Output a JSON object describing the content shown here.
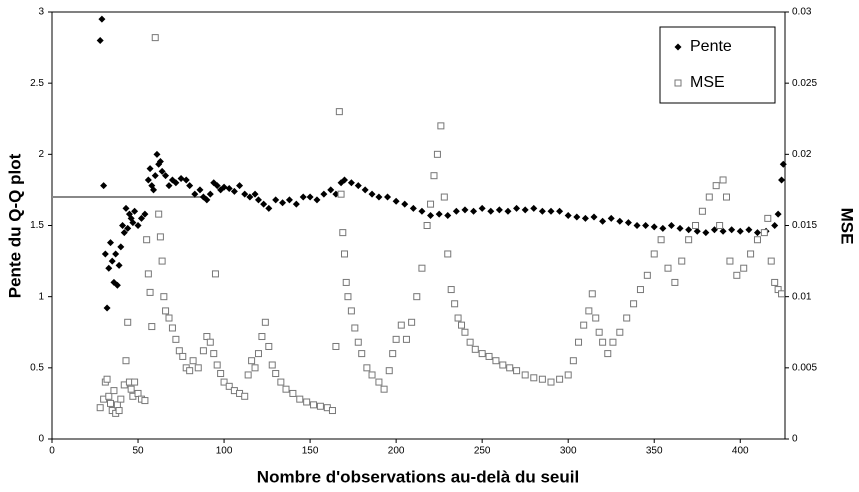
{
  "chart_data": {
    "type": "scatter",
    "xlabel": "Nombre d'observations au-delà du seuil",
    "ylabel": "Pente du Q-Q plot",
    "y2label": "MSE",
    "xlim": [
      0,
      426
    ],
    "xticks": [
      0,
      50,
      100,
      150,
      200,
      250,
      300,
      350,
      400
    ],
    "ylim": [
      0,
      3
    ],
    "yticks": [
      0,
      0.5,
      1,
      1.5,
      2,
      2.5,
      3
    ],
    "y2lim": [
      0,
      0.03
    ],
    "y2ticks": [
      0,
      0.005,
      0.01,
      0.015,
      0.02,
      0.025,
      0.03
    ],
    "legend": "upper right",
    "reference_line": {
      "y": 1.7,
      "x": [
        0,
        90
      ],
      "color": "#888888"
    },
    "series": [
      {
        "name": "Pente",
        "color": "#000000",
        "marker": "diamond",
        "x": [
          28,
          29,
          30,
          31,
          32,
          33,
          34,
          35,
          36,
          37,
          38,
          39,
          40,
          41,
          42,
          43,
          44,
          45,
          46,
          47,
          48,
          50,
          52,
          54,
          56,
          57,
          58,
          59,
          60,
          61,
          62,
          63,
          64,
          66,
          68,
          70,
          72,
          75,
          78,
          80,
          83,
          86,
          88,
          90,
          92,
          94,
          96,
          98,
          100,
          103,
          106,
          109,
          112,
          115,
          118,
          120,
          123,
          126,
          130,
          134,
          138,
          142,
          146,
          150,
          154,
          158,
          162,
          165,
          168,
          170,
          174,
          178,
          182,
          186,
          190,
          195,
          200,
          205,
          210,
          215,
          220,
          225,
          230,
          235,
          240,
          245,
          250,
          255,
          260,
          265,
          270,
          275,
          280,
          285,
          290,
          295,
          300,
          305,
          310,
          315,
          320,
          325,
          330,
          335,
          340,
          345,
          350,
          355,
          360,
          365,
          370,
          375,
          380,
          385,
          390,
          395,
          400,
          405,
          410,
          415,
          420,
          422,
          424,
          425
        ],
        "values": [
          2.8,
          2.95,
          1.78,
          1.3,
          0.92,
          1.2,
          1.38,
          1.25,
          1.1,
          1.3,
          1.08,
          1.22,
          1.35,
          1.5,
          1.45,
          1.62,
          1.48,
          1.58,
          1.55,
          1.52,
          1.6,
          1.5,
          1.55,
          1.58,
          1.82,
          1.9,
          1.78,
          1.75,
          1.85,
          2.0,
          1.93,
          1.95,
          1.88,
          1.85,
          1.78,
          1.82,
          1.8,
          1.83,
          1.82,
          1.78,
          1.72,
          1.75,
          1.7,
          1.68,
          1.72,
          1.8,
          1.78,
          1.75,
          1.77,
          1.76,
          1.74,
          1.78,
          1.72,
          1.7,
          1.72,
          1.68,
          1.65,
          1.62,
          1.68,
          1.66,
          1.68,
          1.65,
          1.7,
          1.7,
          1.68,
          1.72,
          1.75,
          1.72,
          1.8,
          1.82,
          1.8,
          1.78,
          1.75,
          1.72,
          1.7,
          1.7,
          1.67,
          1.65,
          1.62,
          1.6,
          1.57,
          1.58,
          1.57,
          1.6,
          1.61,
          1.6,
          1.62,
          1.6,
          1.61,
          1.6,
          1.62,
          1.61,
          1.62,
          1.6,
          1.6,
          1.6,
          1.57,
          1.56,
          1.55,
          1.56,
          1.53,
          1.55,
          1.53,
          1.52,
          1.5,
          1.5,
          1.49,
          1.48,
          1.5,
          1.48,
          1.47,
          1.46,
          1.45,
          1.47,
          1.46,
          1.47,
          1.46,
          1.47,
          1.45,
          1.46,
          1.5,
          1.58,
          1.82,
          1.93
        ]
      },
      {
        "name": "MSE",
        "color": "#777777",
        "marker": "square",
        "axis": "y2",
        "x": [
          28,
          30,
          31,
          32,
          33,
          34,
          35,
          36,
          37,
          38,
          39,
          40,
          42,
          43,
          44,
          45,
          46,
          47,
          48,
          50,
          52,
          54,
          55,
          56,
          57,
          58,
          60,
          62,
          63,
          64,
          65,
          66,
          68,
          70,
          72,
          74,
          76,
          78,
          80,
          82,
          85,
          88,
          90,
          92,
          94,
          95,
          96,
          98,
          100,
          103,
          106,
          109,
          112,
          114,
          116,
          118,
          120,
          122,
          124,
          126,
          128,
          130,
          133,
          136,
          140,
          144,
          148,
          152,
          156,
          160,
          163,
          165,
          167,
          168,
          169,
          170,
          171,
          172,
          174,
          176,
          178,
          180,
          183,
          186,
          190,
          193,
          196,
          198,
          200,
          203,
          206,
          209,
          212,
          215,
          218,
          220,
          222,
          224,
          226,
          228,
          230,
          232,
          234,
          236,
          238,
          240,
          243,
          246,
          250,
          254,
          258,
          262,
          266,
          270,
          275,
          280,
          285,
          290,
          295,
          300,
          303,
          306,
          309,
          312,
          314,
          316,
          318,
          320,
          323,
          326,
          330,
          334,
          338,
          342,
          346,
          350,
          354,
          358,
          362,
          366,
          370,
          374,
          378,
          382,
          386,
          388,
          390,
          392,
          394,
          398,
          402,
          406,
          410,
          414,
          416,
          418,
          420,
          422,
          424
        ],
        "values": [
          0.0022,
          0.0028,
          0.004,
          0.0042,
          0.003,
          0.0025,
          0.002,
          0.0034,
          0.0018,
          0.0024,
          0.002,
          0.0028,
          0.0038,
          0.0055,
          0.0082,
          0.004,
          0.0035,
          0.003,
          0.004,
          0.0032,
          0.0028,
          0.0027,
          0.014,
          0.0116,
          0.0103,
          0.0079,
          0.0282,
          0.0158,
          0.0142,
          0.0125,
          0.01,
          0.009,
          0.0085,
          0.0078,
          0.007,
          0.0062,
          0.0058,
          0.005,
          0.0048,
          0.0055,
          0.005,
          0.0062,
          0.0072,
          0.0068,
          0.006,
          0.0116,
          0.0052,
          0.0046,
          0.004,
          0.0037,
          0.0034,
          0.0032,
          0.003,
          0.0045,
          0.0055,
          0.005,
          0.006,
          0.0072,
          0.0082,
          0.0065,
          0.0052,
          0.0046,
          0.004,
          0.0035,
          0.0032,
          0.0028,
          0.0026,
          0.0024,
          0.0023,
          0.0022,
          0.002,
          0.0065,
          0.023,
          0.0172,
          0.0145,
          0.013,
          0.011,
          0.01,
          0.009,
          0.0078,
          0.0068,
          0.006,
          0.005,
          0.0045,
          0.004,
          0.0035,
          0.0048,
          0.006,
          0.007,
          0.008,
          0.007,
          0.0082,
          0.01,
          0.012,
          0.015,
          0.0165,
          0.0185,
          0.02,
          0.022,
          0.017,
          0.013,
          0.0105,
          0.0095,
          0.0085,
          0.008,
          0.0075,
          0.0068,
          0.0063,
          0.006,
          0.0058,
          0.0055,
          0.0052,
          0.005,
          0.0048,
          0.0045,
          0.0043,
          0.0042,
          0.004,
          0.0042,
          0.0045,
          0.0055,
          0.0068,
          0.008,
          0.009,
          0.0102,
          0.0085,
          0.0075,
          0.0068,
          0.006,
          0.0068,
          0.0075,
          0.0085,
          0.0095,
          0.0105,
          0.0115,
          0.013,
          0.014,
          0.012,
          0.011,
          0.0125,
          0.014,
          0.015,
          0.016,
          0.017,
          0.0178,
          0.015,
          0.0182,
          0.017,
          0.0125,
          0.0115,
          0.012,
          0.013,
          0.014,
          0.0145,
          0.0155,
          0.0125,
          0.011,
          0.0105,
          0.0102
        ]
      }
    ]
  }
}
